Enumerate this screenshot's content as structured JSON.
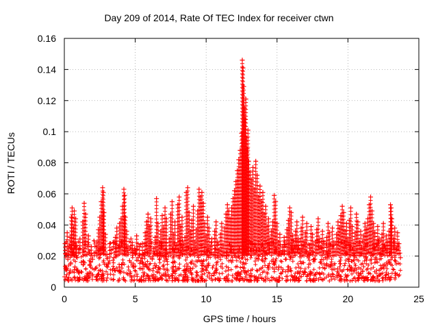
{
  "chart_data": {
    "type": "scatter",
    "title": "Day 209 of 2014, Rate Of TEC Index for receiver ctwn",
    "xlabel": "GPS time / hours",
    "ylabel": "ROTI / TECUs",
    "xlim": [
      0,
      25
    ],
    "ylim": [
      0,
      0.16
    ],
    "xticks": [
      0,
      5,
      10,
      15,
      20,
      25
    ],
    "yticks": [
      0,
      0.02,
      0.04,
      0.06,
      0.08,
      0.1,
      0.12,
      0.14,
      0.16
    ],
    "grid": true,
    "marker": "+",
    "color": "#ff0000",
    "series": [
      {
        "points": [
          [
            0.05,
            0.028
          ],
          [
            0.1,
            0.012
          ],
          [
            0.15,
            0.021
          ],
          [
            0.2,
            0.035
          ],
          [
            0.25,
            0.018
          ],
          [
            0.3,
            0.025
          ],
          [
            0.35,
            0.009
          ],
          [
            0.4,
            0.032
          ],
          [
            0.45,
            0.015
          ],
          [
            0.5,
            0.045
          ],
          [
            0.55,
            0.051
          ],
          [
            0.6,
            0.022
          ],
          [
            0.65,
            0.038
          ],
          [
            0.7,
            0.049
          ],
          [
            0.75,
            0.013
          ],
          [
            0.8,
            0.044
          ],
          [
            0.85,
            0.027
          ],
          [
            0.9,
            0.019
          ],
          [
            0.95,
            0.011
          ],
          [
            1.0,
            0.024
          ],
          [
            1.1,
            0.031
          ],
          [
            1.2,
            0.016
          ],
          [
            1.3,
            0.042
          ],
          [
            1.4,
            0.054
          ],
          [
            1.5,
            0.047
          ],
          [
            1.6,
            0.021
          ],
          [
            1.7,
            0.033
          ],
          [
            1.8,
            0.014
          ],
          [
            1.9,
            0.026
          ],
          [
            2.0,
            0.018
          ],
          [
            2.1,
            0.022
          ],
          [
            2.2,
            0.012
          ],
          [
            2.3,
            0.029
          ],
          [
            2.4,
            0.037
          ],
          [
            2.5,
            0.045
          ],
          [
            2.6,
            0.055
          ],
          [
            2.7,
            0.064
          ],
          [
            2.75,
            0.061
          ],
          [
            2.8,
            0.048
          ],
          [
            2.9,
            0.034
          ],
          [
            3.0,
            0.021
          ],
          [
            3.1,
            0.015
          ],
          [
            3.2,
            0.028
          ],
          [
            3.3,
            0.024
          ],
          [
            3.4,
            0.011
          ],
          [
            3.5,
            0.019
          ],
          [
            3.6,
            0.032
          ],
          [
            3.7,
            0.038
          ],
          [
            3.8,
            0.025
          ],
          [
            3.9,
            0.041
          ],
          [
            4.0,
            0.044
          ],
          [
            4.1,
            0.052
          ],
          [
            4.2,
            0.063
          ],
          [
            4.25,
            0.059
          ],
          [
            4.3,
            0.045
          ],
          [
            4.4,
            0.036
          ],
          [
            4.5,
            0.022
          ],
          [
            4.6,
            0.017
          ],
          [
            4.7,
            0.031
          ],
          [
            4.8,
            0.027
          ],
          [
            4.9,
            0.013
          ],
          [
            5.0,
            0.024
          ],
          [
            5.1,
            0.033
          ],
          [
            5.2,
            0.019
          ],
          [
            5.3,
            0.026
          ],
          [
            5.4,
            0.012
          ],
          [
            5.5,
            0.028
          ],
          [
            5.6,
            0.021
          ],
          [
            5.7,
            0.035
          ],
          [
            5.8,
            0.042
          ],
          [
            5.9,
            0.047
          ],
          [
            6.0,
            0.039
          ],
          [
            6.1,
            0.044
          ],
          [
            6.2,
            0.018
          ],
          [
            6.3,
            0.025
          ],
          [
            6.4,
            0.032
          ],
          [
            6.5,
            0.057
          ],
          [
            6.6,
            0.041
          ],
          [
            6.7,
            0.029
          ],
          [
            6.8,
            0.036
          ],
          [
            6.9,
            0.046
          ],
          [
            7.0,
            0.038
          ],
          [
            7.1,
            0.051
          ],
          [
            7.2,
            0.044
          ],
          [
            7.3,
            0.022
          ],
          [
            7.4,
            0.031
          ],
          [
            7.5,
            0.047
          ],
          [
            7.6,
            0.055
          ],
          [
            7.7,
            0.034
          ],
          [
            7.8,
            0.042
          ],
          [
            7.9,
            0.027
          ],
          [
            8.0,
            0.053
          ],
          [
            8.1,
            0.058
          ],
          [
            8.2,
            0.039
          ],
          [
            8.3,
            0.045
          ],
          [
            8.4,
            0.024
          ],
          [
            8.5,
            0.032
          ],
          [
            8.6,
            0.061
          ],
          [
            8.7,
            0.064
          ],
          [
            8.8,
            0.048
          ],
          [
            8.9,
            0.036
          ],
          [
            9.0,
            0.043
          ],
          [
            9.1,
            0.052
          ],
          [
            9.2,
            0.029
          ],
          [
            9.3,
            0.037
          ],
          [
            9.4,
            0.049
          ],
          [
            9.5,
            0.063
          ],
          [
            9.6,
            0.058
          ],
          [
            9.7,
            0.061
          ],
          [
            9.8,
            0.054
          ],
          [
            9.9,
            0.041
          ],
          [
            10.0,
            0.033
          ],
          [
            10.1,
            0.045
          ],
          [
            10.2,
            0.038
          ],
          [
            10.3,
            0.026
          ],
          [
            10.4,
            0.031
          ],
          [
            10.5,
            0.021
          ],
          [
            10.6,
            0.036
          ],
          [
            10.7,
            0.042
          ],
          [
            10.8,
            0.029
          ],
          [
            10.9,
            0.024
          ],
          [
            11.0,
            0.034
          ],
          [
            11.1,
            0.041
          ],
          [
            11.2,
            0.027
          ],
          [
            11.3,
            0.038
          ],
          [
            11.4,
            0.047
          ],
          [
            11.5,
            0.053
          ],
          [
            11.6,
            0.049
          ],
          [
            11.7,
            0.044
          ],
          [
            11.8,
            0.051
          ],
          [
            11.9,
            0.057
          ],
          [
            12.0,
            0.062
          ],
          [
            12.1,
            0.068
          ],
          [
            12.2,
            0.075
          ],
          [
            12.3,
            0.082
          ],
          [
            12.4,
            0.088
          ],
          [
            12.5,
            0.099
          ],
          [
            12.55,
            0.146
          ],
          [
            12.6,
            0.141
          ],
          [
            12.65,
            0.129
          ],
          [
            12.7,
            0.115
          ],
          [
            12.75,
            0.108
          ],
          [
            12.8,
            0.121
          ],
          [
            12.85,
            0.096
          ],
          [
            12.9,
            0.089
          ],
          [
            12.95,
            0.101
          ],
          [
            13.0,
            0.081
          ],
          [
            13.1,
            0.074
          ],
          [
            13.2,
            0.069
          ],
          [
            13.3,
            0.077
          ],
          [
            13.4,
            0.063
          ],
          [
            13.5,
            0.081
          ],
          [
            13.6,
            0.072
          ],
          [
            13.7,
            0.058
          ],
          [
            13.8,
            0.065
          ],
          [
            13.9,
            0.055
          ],
          [
            14.0,
            0.061
          ],
          [
            14.1,
            0.047
          ],
          [
            14.2,
            0.052
          ],
          [
            14.3,
            0.039
          ],
          [
            14.4,
            0.044
          ],
          [
            14.5,
            0.031
          ],
          [
            14.6,
            0.036
          ],
          [
            14.7,
            0.042
          ],
          [
            14.8,
            0.059
          ],
          [
            14.9,
            0.055
          ],
          [
            15.0,
            0.041
          ],
          [
            15.1,
            0.029
          ],
          [
            15.2,
            0.034
          ],
          [
            15.3,
            0.021
          ],
          [
            15.4,
            0.026
          ],
          [
            15.5,
            0.032
          ],
          [
            15.6,
            0.018
          ],
          [
            15.7,
            0.037
          ],
          [
            15.8,
            0.043
          ],
          [
            15.9,
            0.051
          ],
          [
            16.0,
            0.048
          ],
          [
            16.1,
            0.033
          ],
          [
            16.2,
            0.027
          ],
          [
            16.3,
            0.036
          ],
          [
            16.4,
            0.042
          ],
          [
            16.5,
            0.031
          ],
          [
            16.6,
            0.024
          ],
          [
            16.7,
            0.038
          ],
          [
            16.8,
            0.045
          ],
          [
            16.9,
            0.029
          ],
          [
            17.0,
            0.035
          ],
          [
            17.1,
            0.041
          ],
          [
            17.2,
            0.022
          ],
          [
            17.3,
            0.027
          ],
          [
            17.4,
            0.039
          ],
          [
            17.5,
            0.034
          ],
          [
            17.6,
            0.018
          ],
          [
            17.7,
            0.029
          ],
          [
            17.8,
            0.037
          ],
          [
            17.9,
            0.044
          ],
          [
            18.0,
            0.031
          ],
          [
            18.1,
            0.025
          ],
          [
            18.2,
            0.036
          ],
          [
            18.3,
            0.028
          ],
          [
            18.4,
            0.019
          ],
          [
            18.5,
            0.032
          ],
          [
            18.6,
            0.041
          ],
          [
            18.7,
            0.035
          ],
          [
            18.8,
            0.027
          ],
          [
            18.9,
            0.038
          ],
          [
            19.0,
            0.029
          ],
          [
            19.1,
            0.023
          ],
          [
            19.2,
            0.034
          ],
          [
            19.3,
            0.042
          ],
          [
            19.4,
            0.038
          ],
          [
            19.5,
            0.046
          ],
          [
            19.6,
            0.052
          ],
          [
            19.7,
            0.048
          ],
          [
            19.8,
            0.036
          ],
          [
            19.9,
            0.041
          ],
          [
            20.0,
            0.031
          ],
          [
            20.1,
            0.043
          ],
          [
            20.2,
            0.051
          ],
          [
            20.3,
            0.039
          ],
          [
            20.4,
            0.028
          ],
          [
            20.5,
            0.035
          ],
          [
            20.6,
            0.047
          ],
          [
            20.7,
            0.042
          ],
          [
            20.8,
            0.029
          ],
          [
            20.9,
            0.036
          ],
          [
            21.0,
            0.024
          ],
          [
            21.1,
            0.033
          ],
          [
            21.2,
            0.041
          ],
          [
            21.3,
            0.037
          ],
          [
            21.4,
            0.044
          ],
          [
            21.5,
            0.053
          ],
          [
            21.6,
            0.058
          ],
          [
            21.7,
            0.049
          ],
          [
            21.8,
            0.041
          ],
          [
            21.9,
            0.035
          ],
          [
            22.0,
            0.028
          ],
          [
            22.1,
            0.039
          ],
          [
            22.2,
            0.031
          ],
          [
            22.3,
            0.022
          ],
          [
            22.4,
            0.034
          ],
          [
            22.5,
            0.041
          ],
          [
            22.6,
            0.027
          ],
          [
            22.7,
            0.033
          ],
          [
            22.8,
            0.029
          ],
          [
            22.9,
            0.036
          ],
          [
            23.0,
            0.053
          ],
          [
            23.05,
            0.051
          ],
          [
            23.1,
            0.044
          ],
          [
            23.2,
            0.031
          ],
          [
            23.3,
            0.038
          ],
          [
            23.4,
            0.024
          ],
          [
            23.5,
            0.035
          ],
          [
            23.6,
            0.028
          ],
          [
            23.7,
            0.019
          ]
        ]
      }
    ]
  }
}
